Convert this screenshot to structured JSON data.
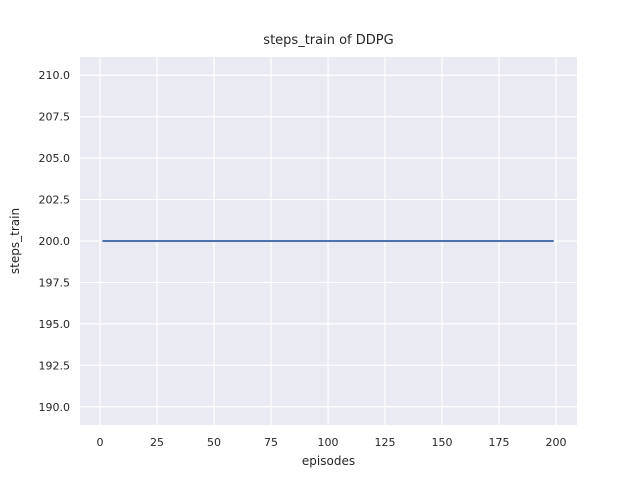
{
  "figure": {
    "background_color": "#ffffff"
  },
  "chart_data": {
    "type": "line",
    "title": "steps_train of DDPG",
    "xlabel": "episodes",
    "ylabel": "steps_train",
    "x_ticks": [
      0,
      25,
      50,
      75,
      100,
      125,
      150,
      175,
      200
    ],
    "x_tick_labels": [
      "0",
      "25",
      "50",
      "75",
      "100",
      "125",
      "150",
      "175",
      "200"
    ],
    "y_ticks": [
      190.0,
      192.5,
      195.0,
      197.5,
      200.0,
      202.5,
      205.0,
      207.5,
      210.0
    ],
    "y_tick_labels": [
      "190.0",
      "192.5",
      "195.0",
      "197.5",
      "200.0",
      "202.5",
      "205.0",
      "207.5",
      "210.0"
    ],
    "xlim": [
      -8.8,
      209.2
    ],
    "ylim": [
      188.9,
      211.1
    ],
    "grid": true,
    "legend": false,
    "plot_background_color": "#eaeaf2",
    "grid_color": "#ffffff",
    "text_color": "#262626",
    "series": [
      {
        "name": "steps_train",
        "color": "#4c72b0",
        "constant_value": 200,
        "x": [
          1,
          199
        ],
        "y": [
          200,
          200
        ]
      }
    ]
  }
}
